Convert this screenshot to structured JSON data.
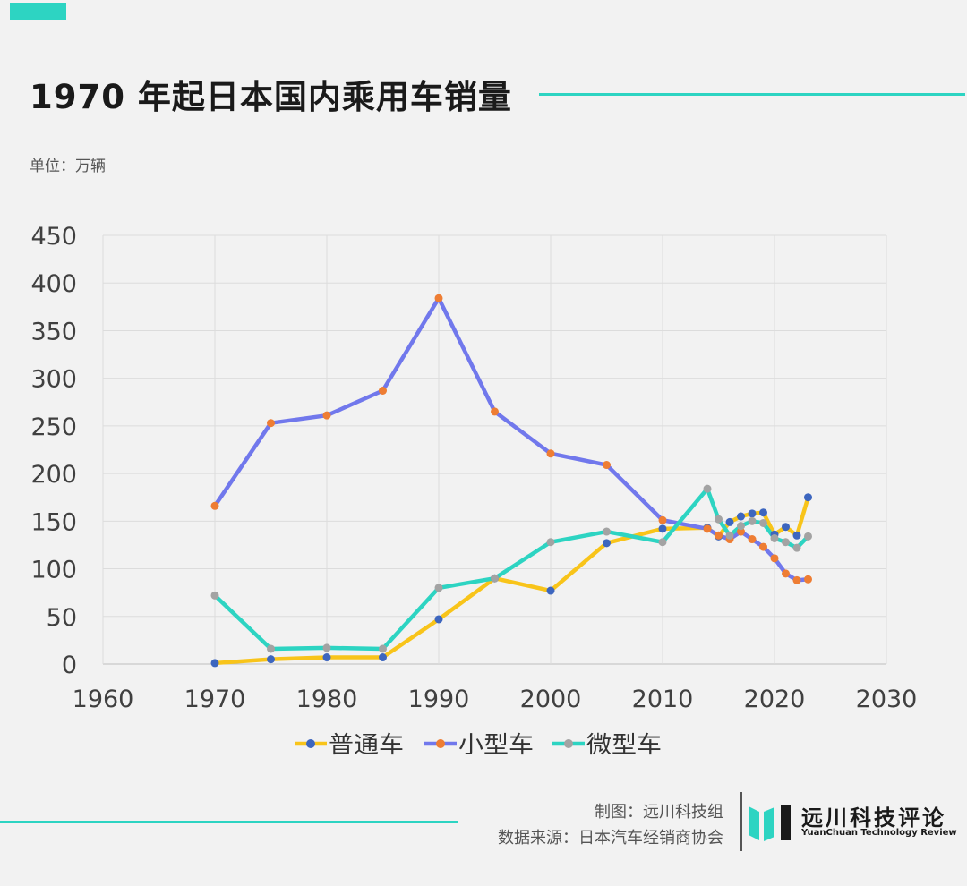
{
  "header": {
    "title": "1970 年起日本国内乘用车销量",
    "unit": "单位：万辆"
  },
  "footer": {
    "credit_line1": "制图：远川科技组",
    "credit_line2": "数据来源：日本汽车经销商协会",
    "brand_name": "远川科技评论",
    "brand_sub": "YuanChuan Technology Review"
  },
  "colors": {
    "accent": "#2dd4c2"
  },
  "chart_data": {
    "type": "line",
    "title": "1970 年起日本国内乘用车销量",
    "xlabel": "",
    "ylabel": "",
    "xlim": [
      1960,
      2030
    ],
    "ylim": [
      0,
      450
    ],
    "xticks": [
      1960,
      1970,
      1980,
      1990,
      2000,
      2010,
      2020,
      2030
    ],
    "yticks": [
      0,
      50,
      100,
      150,
      200,
      250,
      300,
      350,
      400,
      450
    ],
    "grid": true,
    "legend_position": "bottom",
    "series": [
      {
        "name": "普通车",
        "line_color": "#f8c41a",
        "marker_color": "#3d66bf",
        "x": [
          1970,
          1975,
          1980,
          1985,
          1990,
          1995,
          2000,
          2005,
          2010,
          2014,
          2015,
          2016,
          2017,
          2018,
          2019,
          2020,
          2021,
          2022,
          2023
        ],
        "y": [
          1,
          5,
          7,
          7,
          47,
          90,
          77,
          127,
          142,
          143,
          134,
          149,
          155,
          158,
          159,
          136,
          144,
          135,
          175
        ]
      },
      {
        "name": "小型车",
        "line_color": "#7178ec",
        "marker_color": "#ee7d33",
        "x": [
          1970,
          1975,
          1980,
          1985,
          1990,
          1995,
          2000,
          2005,
          2010,
          2014,
          2015,
          2016,
          2017,
          2018,
          2019,
          2020,
          2021,
          2022,
          2023
        ],
        "y": [
          166,
          253,
          261,
          287,
          384,
          265,
          221,
          209,
          151,
          142,
          135,
          131,
          139,
          131,
          123,
          111,
          95,
          88,
          89
        ]
      },
      {
        "name": "微型车",
        "line_color": "#2dd4c2",
        "marker_color": "#a3a3a3",
        "x": [
          1970,
          1975,
          1980,
          1985,
          1990,
          1995,
          2000,
          2005,
          2010,
          2014,
          2015,
          2016,
          2017,
          2018,
          2019,
          2020,
          2021,
          2022,
          2023
        ],
        "y": [
          72,
          16,
          17,
          16,
          80,
          90,
          128,
          139,
          128,
          184,
          152,
          135,
          145,
          150,
          148,
          132,
          128,
          122,
          134
        ]
      }
    ]
  }
}
